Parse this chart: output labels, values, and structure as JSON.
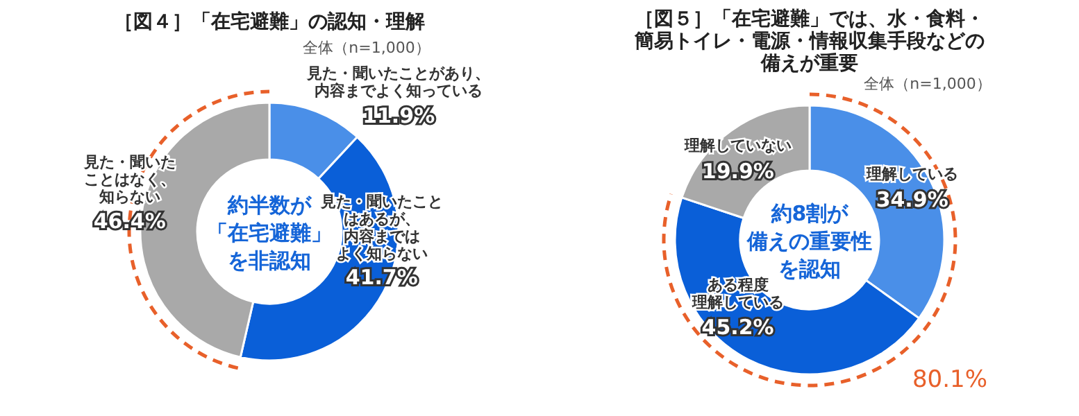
{
  "chart_data": [
    {
      "type": "donut",
      "title": "［図４］「在宅避難」の認知・理解",
      "subtitle": "全体（n=1,000）",
      "categories": [
        "見た・聞いたことがあり、内容までよく知っている",
        "見た・聞いたことはあるが、内容まではよく知らない",
        "見た・聞いたことはなく、知らない"
      ],
      "values": [
        11.9,
        41.7,
        46.4
      ],
      "value_labels": [
        "11.9%",
        "41.7%",
        "46.4%"
      ],
      "colors": [
        "#4a8fe8",
        "#0a5fd8",
        "#a9a9a9"
      ],
      "annotations": [
        "約半数が「在宅避難」を非認知"
      ]
    },
    {
      "type": "donut",
      "title": "［図５］「在宅避難」では、水・食料・簡易トイレ・電源・情報収集手段などの備えが重要",
      "subtitle": "全体（n=1,000）",
      "categories": [
        "理解している",
        "ある程度理解している",
        "理解していない"
      ],
      "values": [
        34.9,
        45.2,
        19.9
      ],
      "value_labels": [
        "34.9%",
        "45.2%",
        "19.9%"
      ],
      "colors": [
        "#4a8fe8",
        "#0a5fd8",
        "#a9a9a9"
      ],
      "annotations": [
        "約8割が備えの重要性を認知",
        "80.1%"
      ]
    }
  ]
}
